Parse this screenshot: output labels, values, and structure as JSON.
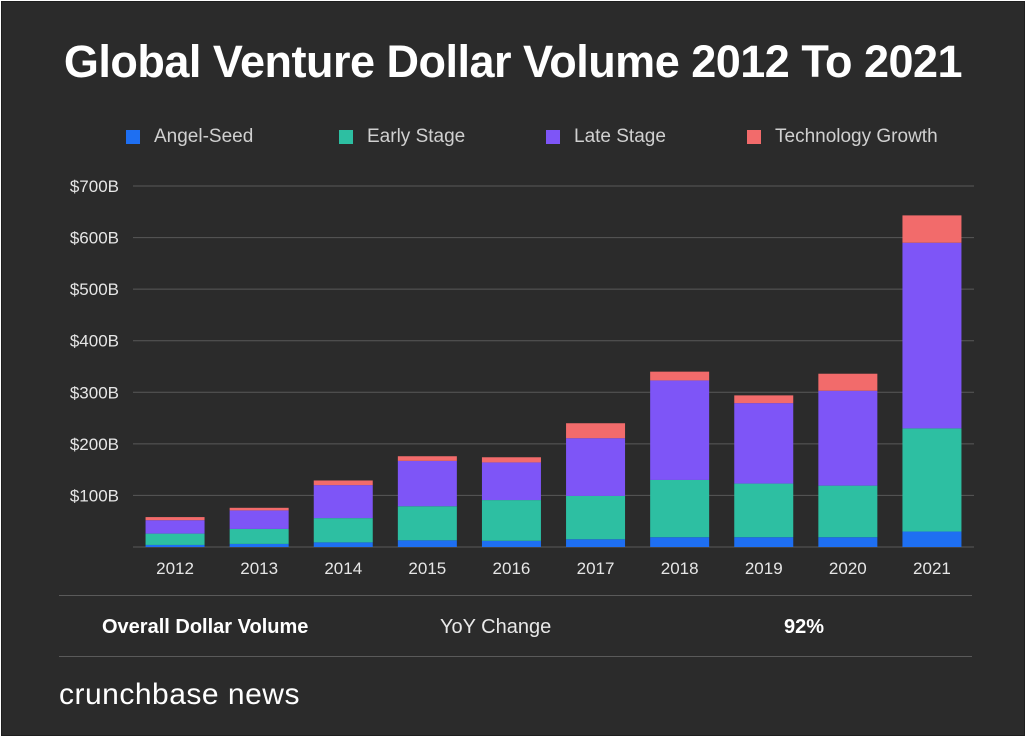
{
  "colors": {
    "background": "#2b2b2b",
    "angel_seed": "#1e6ff2",
    "early_stage": "#2dbfa2",
    "late_stage": "#7e55f7",
    "technology_growth": "#f26b6b",
    "gridline": "#595959",
    "text": "#ffffff"
  },
  "summary": {
    "label": "Overall Dollar Volume",
    "yoy_label": "YoY Change",
    "yoy_value": "92%"
  },
  "brand": {
    "name": "crunchbase news"
  },
  "chart_data": {
    "type": "bar",
    "stacked": true,
    "title": "Global Venture Dollar Volume 2012 To 2021",
    "xlabel": "",
    "ylabel": "",
    "categories": [
      "2012",
      "2013",
      "2014",
      "2015",
      "2016",
      "2017",
      "2018",
      "2019",
      "2020",
      "2021"
    ],
    "series": [
      {
        "name": "Angel-Seed",
        "color": "#1e6ff2",
        "values": [
          4,
          6,
          9,
          13,
          12,
          15,
          19,
          19,
          19,
          30
        ]
      },
      {
        "name": "Early Stage",
        "color": "#2dbfa2",
        "values": [
          22,
          29,
          47,
          66,
          79,
          84,
          111,
          104,
          100,
          200
        ]
      },
      {
        "name": "Late Stage",
        "color": "#7e55f7",
        "values": [
          26,
          36,
          64,
          88,
          73,
          112,
          193,
          156,
          184,
          360
        ]
      },
      {
        "name": "Technology Growth",
        "color": "#f26b6b",
        "values": [
          6,
          5,
          9,
          9,
          10,
          29,
          17,
          15,
          33,
          53
        ]
      }
    ],
    "y_ticks": [
      {
        "value": 100,
        "label": "$100B"
      },
      {
        "value": 200,
        "label": "$200B"
      },
      {
        "value": 300,
        "label": "$300B"
      },
      {
        "value": 400,
        "label": "$400B"
      },
      {
        "value": 500,
        "label": "$500B"
      },
      {
        "value": 600,
        "label": "$600B"
      },
      {
        "value": 700,
        "label": "$700B"
      }
    ],
    "ylim": [
      0,
      700
    ],
    "grid": true,
    "legend_position": "top"
  }
}
